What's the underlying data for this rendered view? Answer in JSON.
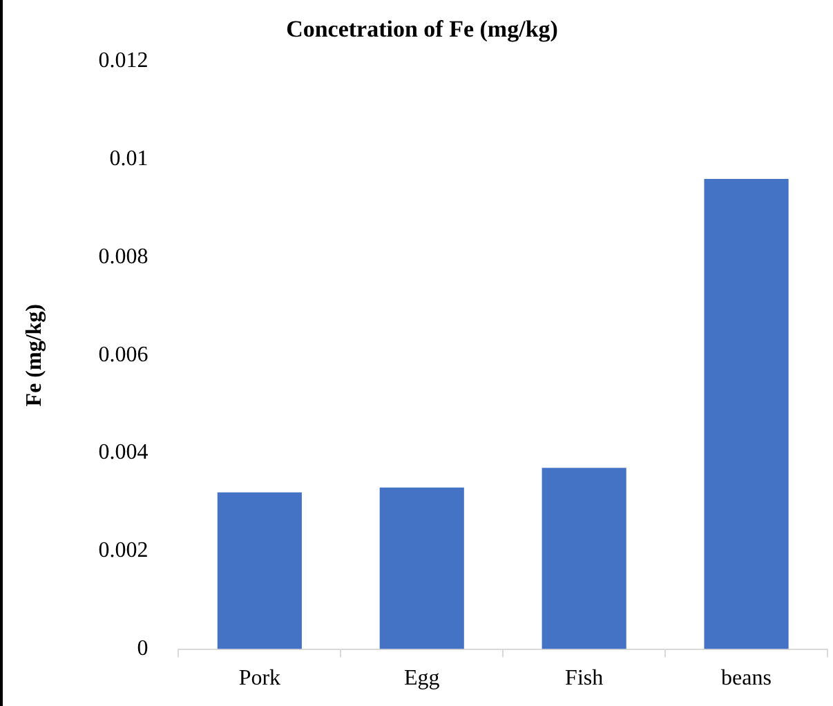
{
  "chart_data": {
    "type": "bar",
    "title": "Concetration of Fe (mg/kg)",
    "ylabel": "Fe (mg/kg)",
    "categories": [
      "Pork",
      "Egg",
      "Fish",
      "beans"
    ],
    "values": [
      0.0032,
      0.0033,
      0.0037,
      0.0096
    ],
    "color": "#4472c4",
    "ylim": [
      0,
      0.012
    ],
    "yticks": [
      0,
      0.002,
      0.004,
      0.006,
      0.008,
      0.01,
      0.012
    ],
    "grid": false,
    "legend": false
  }
}
